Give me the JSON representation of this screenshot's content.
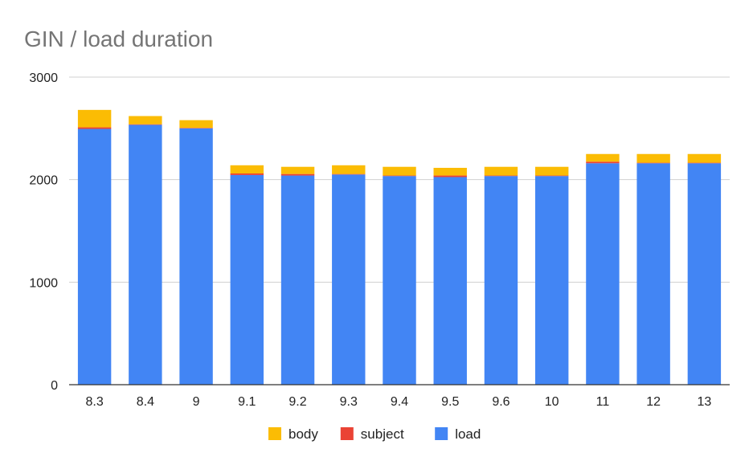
{
  "chart_data": {
    "type": "bar",
    "stacked": true,
    "title": "GIN / load duration",
    "xlabel": "",
    "ylabel": "",
    "ylim": [
      0,
      3000
    ],
    "yticks": [
      "0",
      "1000",
      "2000",
      "3000"
    ],
    "grid": true,
    "legend_position": "bottom",
    "categories": [
      "8.3",
      "8.4",
      "9",
      "9.1",
      "9.2",
      "9.3",
      "9.4",
      "9.5",
      "9.6",
      "10",
      "11",
      "12",
      "13"
    ],
    "series": [
      {
        "name": "load",
        "color": "#4285F4",
        "values": [
          2495,
          2535,
          2500,
          2045,
          2040,
          2050,
          2035,
          2025,
          2035,
          2035,
          2160,
          2160,
          2160
        ]
      },
      {
        "name": "subject",
        "color": "#EA4335",
        "values": [
          15,
          5,
          5,
          15,
          15,
          5,
          5,
          15,
          5,
          5,
          15,
          5,
          5
        ]
      },
      {
        "name": "body",
        "color": "#FBBC04",
        "values": [
          170,
          80,
          75,
          80,
          70,
          85,
          85,
          75,
          85,
          85,
          75,
          85,
          85
        ]
      }
    ],
    "legend_order": [
      "body",
      "subject",
      "load"
    ]
  }
}
